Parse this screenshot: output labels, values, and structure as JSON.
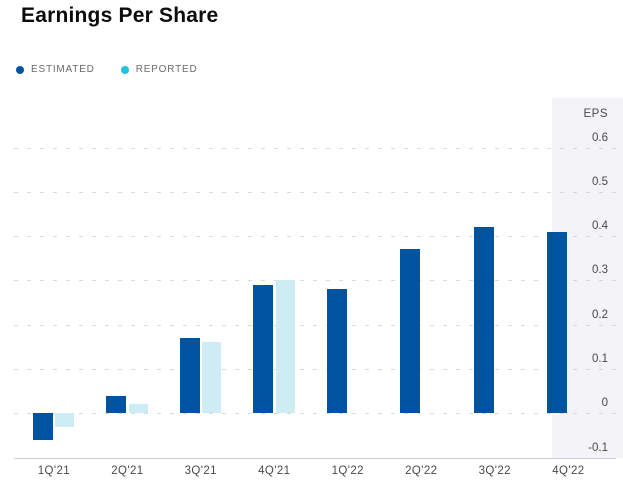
{
  "title": "Earnings Per Share",
  "legend": {
    "items": [
      {
        "label": "ESTIMATED",
        "color": "#00539e"
      },
      {
        "label": "REPORTED",
        "color": "#1fc2e0"
      }
    ]
  },
  "colors": {
    "estimated_bar": "#00539e",
    "reported_bar": "#cdecf4",
    "legend_reported_dot": "#1fc2e0",
    "highlight_panel": "#f4f3f7",
    "gridline": "#d9d9d9",
    "axis_line": "#c9d2da",
    "axis_text": "#4a4a4a",
    "legend_text": "#6b6b6b",
    "title_text": "#0c0c0c"
  },
  "chart_data": {
    "type": "bar",
    "title": "Earnings Per Share",
    "categories": [
      "1Q'21",
      "2Q'21",
      "3Q'21",
      "4Q'21",
      "1Q'22",
      "2Q'22",
      "3Q'22",
      "4Q'22"
    ],
    "series": [
      {
        "name": "ESTIMATED",
        "color": "#00539e",
        "values": [
          -0.06,
          0.04,
          0.17,
          0.29,
          0.28,
          0.37,
          0.42,
          0.41
        ]
      },
      {
        "name": "REPORTED",
        "color": "#cdecf4",
        "values": [
          -0.03,
          0.02,
          0.16,
          0.3,
          null,
          null,
          null,
          null
        ]
      }
    ],
    "xlabel": "",
    "ylabel": "EPS",
    "ytick_labels": [
      "0.6",
      "0.5",
      "0.4",
      "0.3",
      "0.2",
      "0.1",
      "0",
      "-0.1"
    ],
    "ytick_values": [
      0.6,
      0.5,
      0.4,
      0.3,
      0.2,
      0.1,
      0,
      -0.1
    ],
    "ylim": [
      -0.1,
      0.71
    ],
    "grid": "horizontal-dashed",
    "legend_position": "top-left",
    "highlighted_category": "4Q'22"
  }
}
